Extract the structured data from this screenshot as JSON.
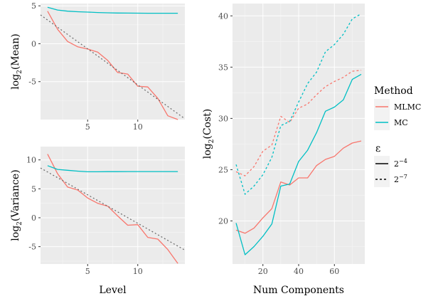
{
  "colors": {
    "mlmc": "#F8766D",
    "mc": "#00BFC4",
    "reference": "#666666"
  },
  "chart_data": [
    {
      "id": "mean",
      "type": "line",
      "title": "",
      "xlabel": "",
      "ylabel_base": "log",
      "ylabel_sub": "2",
      "ylabel_rest": "(Mean)",
      "xlim": [
        0.3,
        14.7
      ],
      "ylim": [
        -10,
        5.3
      ],
      "xticks": [
        5,
        10
      ],
      "yticks": [
        5,
        0,
        -5
      ],
      "ytick_labels": [
        "5",
        "0",
        "-5"
      ],
      "series": [
        {
          "name": "MLMC",
          "color": "#F8766D",
          "dash": "",
          "x": [
            1,
            2,
            3,
            4,
            5,
            6,
            7,
            8,
            9,
            10,
            11,
            12,
            13,
            14
          ],
          "y": [
            4.3,
            1.9,
            0.3,
            -0.4,
            -0.7,
            -1.1,
            -2.2,
            -3.8,
            -4.0,
            -5.6,
            -5.7,
            -7.2,
            -9.5,
            -10.0
          ]
        },
        {
          "name": "MC",
          "color": "#00BFC4",
          "dash": "",
          "x": [
            1,
            2,
            3,
            4,
            5,
            6,
            7,
            8,
            9,
            10,
            11,
            12,
            13,
            14
          ],
          "y": [
            4.8,
            4.45,
            4.3,
            4.22,
            4.17,
            4.12,
            4.08,
            4.05,
            4.04,
            4.03,
            4.02,
            4.02,
            4.02,
            4.02
          ]
        },
        {
          "name": "reference",
          "color": "#666666",
          "dash": "2,3",
          "x": [
            0.3,
            14.7
          ],
          "y": [
            3.8,
            -9.9
          ]
        }
      ]
    },
    {
      "id": "variance",
      "type": "line",
      "title": "",
      "xlabel": "Level",
      "ylabel_base": "log",
      "ylabel_sub": "2",
      "ylabel_rest": "(Variance)",
      "xlim": [
        0.3,
        14.7
      ],
      "ylim": [
        -8,
        12.3
      ],
      "xticks": [
        5,
        10
      ],
      "yticks": [
        10,
        5,
        0,
        -5
      ],
      "ytick_labels": [
        "10",
        "5",
        "0",
        "-5"
      ],
      "series": [
        {
          "name": "MLMC",
          "color": "#F8766D",
          "dash": "",
          "x": [
            1,
            2,
            3,
            4,
            5,
            6,
            7,
            8,
            9,
            10,
            11,
            12,
            13,
            14
          ],
          "y": [
            11.0,
            7.6,
            5.3,
            4.8,
            3.4,
            2.5,
            2.0,
            0.3,
            -1.3,
            -1.2,
            -3.4,
            -3.7,
            -5.5,
            -7.9
          ]
        },
        {
          "name": "MC",
          "color": "#00BFC4",
          "dash": "",
          "x": [
            1,
            2,
            3,
            4,
            5,
            6,
            7,
            8,
            9,
            10,
            11,
            12,
            13,
            14
          ],
          "y": [
            9.0,
            8.35,
            8.2,
            8.05,
            7.95,
            7.95,
            7.97,
            7.97,
            7.98,
            7.98,
            7.98,
            7.98,
            7.98,
            7.98
          ]
        },
        {
          "name": "reference",
          "color": "#666666",
          "dash": "2,3",
          "x": [
            0.3,
            14.7
          ],
          "y": [
            8.6,
            -5.6
          ]
        }
      ]
    },
    {
      "id": "cost",
      "type": "line",
      "title": "",
      "xlabel": "Num Components",
      "ylabel_base": "log",
      "ylabel_sub": "2",
      "ylabel_rest": "(Cost)",
      "xlim": [
        3,
        77
      ],
      "ylim": [
        15.8,
        41.2
      ],
      "xticks": [
        20,
        40,
        60
      ],
      "yticks": [
        40,
        35,
        30,
        25,
        20
      ],
      "ytick_labels": [
        "40",
        "35",
        "30",
        "25",
        "20"
      ],
      "series": [
        {
          "name": "MLMC eps 2^-4",
          "color": "#F8766D",
          "dash": "",
          "x": [
            5,
            10,
            15,
            20,
            25,
            30,
            35,
            40,
            45,
            50,
            55,
            60,
            65,
            70,
            75
          ],
          "y": [
            19.1,
            18.8,
            19.3,
            20.3,
            21.2,
            23.8,
            23.5,
            24.2,
            24.2,
            25.4,
            26.0,
            26.3,
            27.1,
            27.6,
            27.8
          ]
        },
        {
          "name": "MC eps 2^-4",
          "color": "#00BFC4",
          "dash": "",
          "x": [
            5,
            10,
            15,
            20,
            25,
            30,
            35,
            40,
            45,
            50,
            55,
            60,
            65,
            70,
            75
          ],
          "y": [
            19.8,
            16.7,
            17.5,
            18.5,
            19.7,
            23.4,
            23.6,
            25.8,
            26.9,
            28.6,
            30.7,
            31.1,
            31.8,
            33.8,
            34.3
          ]
        },
        {
          "name": "MLMC eps 2^-7",
          "color": "#F8766D",
          "dash": "3,3",
          "x": [
            5,
            10,
            15,
            20,
            25,
            30,
            35,
            40,
            45,
            50,
            55,
            60,
            65,
            70,
            75
          ],
          "y": [
            24.8,
            24.4,
            25.3,
            26.8,
            27.4,
            30.2,
            29.6,
            31.0,
            31.4,
            32.3,
            33.1,
            33.6,
            34.0,
            34.6,
            34.7
          ]
        },
        {
          "name": "MC eps 2^-7",
          "color": "#00BFC4",
          "dash": "3,3",
          "x": [
            5,
            10,
            15,
            20,
            25,
            30,
            35,
            40,
            45,
            50,
            55,
            60,
            65,
            70,
            75
          ],
          "y": [
            25.5,
            22.6,
            23.4,
            24.5,
            26.2,
            29.3,
            29.7,
            31.6,
            33.4,
            34.5,
            36.5,
            37.2,
            38.2,
            39.7,
            40.2
          ]
        }
      ]
    }
  ],
  "legend": {
    "method_title": "Method",
    "methods": [
      {
        "label": "MLMC",
        "color": "#F8766D"
      },
      {
        "label": "MC",
        "color": "#00BFC4"
      }
    ],
    "eps_title": "ε",
    "eps_items": [
      {
        "base": "2",
        "exp": "−4",
        "dash": ""
      },
      {
        "base": "2",
        "exp": "−7",
        "dash": "3,3"
      }
    ]
  }
}
